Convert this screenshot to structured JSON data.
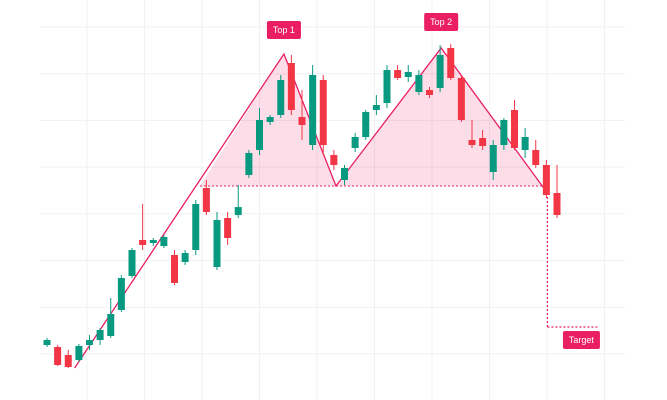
{
  "chart_data": {
    "type": "candlestick",
    "ylim": [
      0,
      400
    ],
    "up_color": "#089981",
    "down_color": "#f23645",
    "pattern_color": "#e91e63",
    "open": [
      55,
      53,
      45,
      40,
      55,
      60,
      64,
      90,
      124,
      160,
      157,
      154,
      145,
      138,
      150,
      212,
      133,
      182,
      185,
      225,
      250,
      278,
      285,
      337,
      283,
      255,
      320,
      245,
      220,
      252,
      263,
      290,
      297,
      330,
      323,
      308,
      310,
      312,
      352,
      322,
      260,
      262,
      228,
      255,
      290,
      250,
      250,
      235,
      207
    ],
    "high": [
      62,
      55,
      50,
      56,
      65,
      72,
      102,
      125,
      152,
      196,
      162,
      165,
      150,
      150,
      200,
      220,
      188,
      188,
      215,
      250,
      292,
      285,
      325,
      345,
      310,
      335,
      325,
      250,
      235,
      267,
      290,
      305,
      335,
      335,
      335,
      330,
      313,
      355,
      356,
      325,
      280,
      270,
      260,
      282,
      300,
      272,
      260,
      240,
      235
    ],
    "low": [
      53,
      34,
      32,
      38,
      50,
      55,
      62,
      88,
      122,
      150,
      154,
      152,
      115,
      135,
      145,
      185,
      130,
      155,
      182,
      222,
      245,
      275,
      282,
      285,
      260,
      250,
      245,
      230,
      215,
      248,
      260,
      285,
      292,
      320,
      318,
      305,
      302,
      308,
      320,
      278,
      252,
      250,
      220,
      250,
      250,
      242,
      232,
      202,
      182
    ],
    "close": [
      60,
      35,
      33,
      54,
      60,
      70,
      86,
      122,
      150,
      155,
      160,
      163,
      117,
      147,
      196,
      188,
      180,
      162,
      193,
      247,
      280,
      283,
      320,
      290,
      275,
      325,
      255,
      235,
      232,
      263,
      288,
      295,
      330,
      322,
      328,
      325,
      305,
      345,
      322,
      280,
      255,
      254,
      255,
      280,
      252,
      263,
      235,
      205,
      185
    ],
    "zigzag": {
      "x": [
        2.6,
        22.3,
        27.2,
        37.1,
        47.1
      ],
      "values": [
        32,
        346,
        214,
        352,
        207
      ]
    },
    "neckline": {
      "x": [
        14.4,
        47.1
      ],
      "value": 214
    },
    "target": {
      "x": [
        47.1,
        51.8
      ],
      "from": 207,
      "value": 73
    },
    "annotations": [
      {
        "text": "Top 1",
        "x": 22.3,
        "value": 370
      },
      {
        "text": "Top 2",
        "x": 37.1,
        "value": 378
      },
      {
        "text": "Target",
        "x": 50.3,
        "value": 60
      }
    ]
  }
}
